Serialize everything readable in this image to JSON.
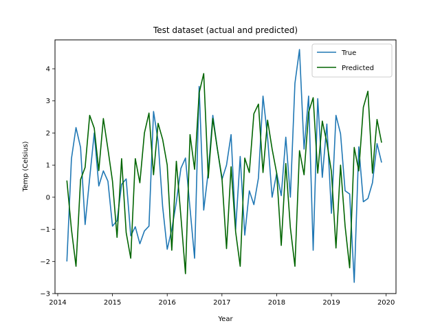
{
  "chart_data": {
    "type": "line",
    "title": "Test dataset (actual and predicted)",
    "xlabel": "Year",
    "ylabel": "Temp (Celsius)",
    "xlim": [
      2013.95,
      2020.18
    ],
    "ylim": [
      -3,
      4.9
    ],
    "xticks": [
      2014,
      2015,
      2016,
      2017,
      2018,
      2019,
      2020
    ],
    "xtick_labels": [
      "2014",
      "2015",
      "2016",
      "2017",
      "2018",
      "2019",
      "2020"
    ],
    "yticks": [
      -3,
      -2,
      -1,
      0,
      1,
      2,
      3,
      4
    ],
    "ytick_labels": [
      "−3",
      "−2",
      "−1",
      "0",
      "1",
      "2",
      "3",
      "4"
    ],
    "grid": false,
    "legend_position": "top-right",
    "start_year": 2014.167,
    "step": 0.08333,
    "series": [
      {
        "name": "True",
        "color": "#1f77b4",
        "values": [
          -2.0,
          1.2,
          2.17,
          1.55,
          -0.85,
          0.6,
          2.0,
          0.35,
          0.82,
          0.5,
          -0.9,
          -0.73,
          0.4,
          0.57,
          -1.2,
          -0.92,
          -1.45,
          -1.05,
          -0.9,
          2.67,
          1.75,
          -0.3,
          -1.62,
          -1.0,
          -0.15,
          0.9,
          1.22,
          -0.35,
          -1.9,
          3.45,
          -0.4,
          0.8,
          2.55,
          1.5,
          0.55,
          1.0,
          1.95,
          -1.0,
          1.27,
          -1.18,
          0.2,
          -0.23,
          0.6,
          3.15,
          1.87,
          0.0,
          0.75,
          0.05,
          1.87,
          0.0,
          3.55,
          4.6,
          1.5,
          3.15,
          -1.65,
          3.07,
          0.62,
          2.28,
          -0.5,
          2.55,
          1.98,
          0.2,
          0.1,
          -2.65,
          1.57,
          -0.14,
          -0.04,
          0.45,
          1.67,
          1.08
        ]
      },
      {
        "name": "Predicted",
        "color": "#006400",
        "values": [
          0.52,
          -1.0,
          -2.15,
          0.55,
          0.93,
          2.55,
          2.15,
          0.83,
          2.45,
          1.5,
          0.5,
          -1.25,
          1.2,
          -1.1,
          -1.9,
          1.2,
          0.45,
          2.0,
          2.62,
          0.7,
          2.3,
          1.8,
          1.0,
          -1.65,
          1.12,
          -0.6,
          -2.38,
          1.95,
          0.87,
          3.25,
          3.85,
          0.6,
          2.45,
          1.5,
          0.6,
          -1.6,
          0.95,
          -1.08,
          -2.15,
          1.22,
          0.77,
          2.6,
          2.9,
          0.77,
          2.4,
          1.5,
          0.75,
          -1.5,
          1.05,
          -0.95,
          -2.15,
          1.45,
          0.7,
          2.65,
          3.1,
          0.75,
          2.37,
          1.7,
          0.8,
          -1.58,
          1.0,
          -0.9,
          -2.2,
          1.55,
          0.82,
          2.8,
          3.3,
          0.75,
          2.42,
          1.7
        ]
      }
    ]
  }
}
